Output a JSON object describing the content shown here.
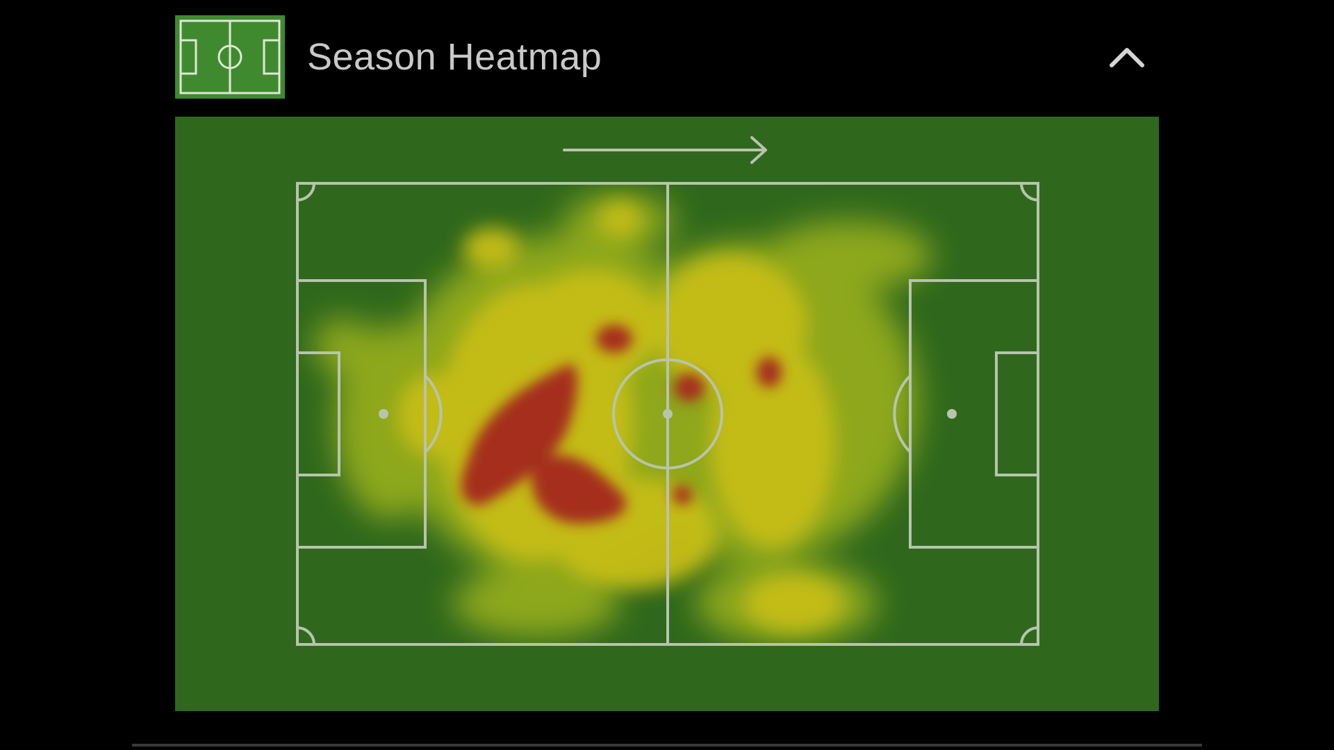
{
  "header": {
    "title": "Season Heatmap",
    "icon": "football-pitch-icon",
    "collapse_icon": "chevron-up-icon"
  },
  "heatmap": {
    "attack_direction": "right",
    "direction_icon": "arrow-right-icon",
    "colors": {
      "panel_background": "#2f681d",
      "pitch_lines": "#b8c4ae",
      "low": "#9fb31f",
      "medium": "#c6bd16",
      "high": "#a52e1d",
      "icon_background": "#3f8a2e"
    }
  }
}
